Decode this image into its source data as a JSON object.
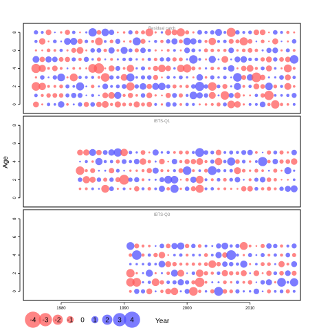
{
  "chart_data": {
    "type": "scatter",
    "subtype": "bubble residual plot",
    "ylabel": "Age",
    "xlabel": "Year",
    "x_ticks": [
      1980,
      1990,
      2000,
      2010
    ],
    "colors": {
      "positive": "#5050ff",
      "negative": "#ff5c5c"
    },
    "panels": [
      {
        "title": "Residual catch",
        "xlim": [
          1974,
          2018
        ],
        "ylim": [
          -1,
          9
        ],
        "y_ticks": [
          0,
          2,
          4,
          6,
          8
        ],
        "ages": [
          0,
          1,
          2,
          3,
          4,
          5,
          6,
          7,
          8
        ],
        "years": [
          1976,
          2017
        ],
        "seed": 7
      },
      {
        "title": "IBTS-Q1",
        "xlim": [
          1974,
          2018
        ],
        "ylim": [
          -1,
          9
        ],
        "y_ticks": [
          0,
          2,
          4,
          6,
          8
        ],
        "ages": [
          1,
          2,
          3,
          4,
          5
        ],
        "years": [
          1983,
          2017
        ],
        "seed": 19
      },
      {
        "title": "IBTS-Q3",
        "xlim": [
          1974,
          2018
        ],
        "ylim": [
          -1,
          9
        ],
        "y_ticks": [
          0,
          2,
          4,
          6,
          8
        ],
        "ages": [
          0,
          1,
          2,
          3,
          4,
          5
        ],
        "years": [
          1991,
          2017
        ],
        "seed": 31
      }
    ],
    "legend": {
      "values": [
        -4,
        -3,
        -2,
        -1,
        0,
        1,
        2,
        3,
        4
      ],
      "labels": [
        "-4",
        "-3",
        "-2",
        "-1",
        "0",
        "1",
        "2",
        "3",
        "4"
      ]
    }
  }
}
